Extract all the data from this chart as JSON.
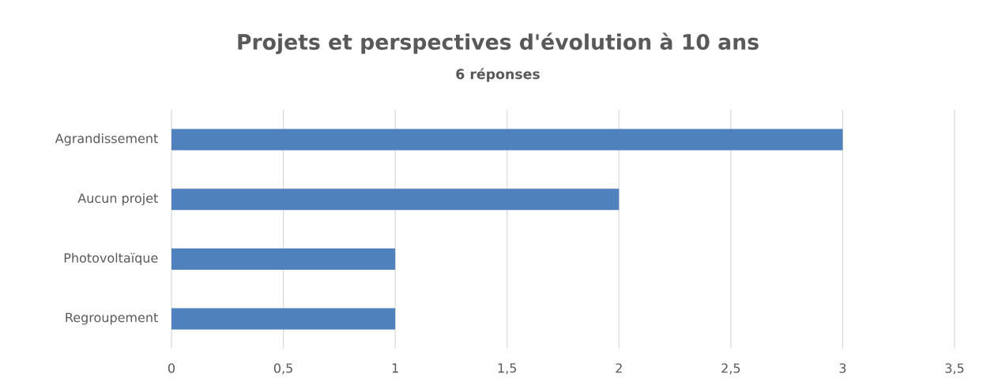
{
  "chart_data": {
    "type": "bar",
    "orientation": "horizontal",
    "title": "Projets et perspectives d'évolution à 10 ans",
    "subtitle": "6 réponses",
    "categories": [
      "Agrandissement",
      "Aucun projet",
      "Photovoltaïque",
      "Regroupement"
    ],
    "values": [
      3,
      2,
      1,
      1
    ],
    "color": "#4f81bd",
    "xlim": [
      0,
      3.5
    ],
    "xticks": [
      0,
      {
        "value": 0.5,
        "label": "0,5"
      },
      1,
      {
        "value": 1.5,
        "label": "1,5"
      },
      2,
      {
        "value": 2.5,
        "label": "2,5"
      },
      3,
      {
        "value": 3.5,
        "label": "3,5"
      }
    ],
    "grid": "x"
  }
}
